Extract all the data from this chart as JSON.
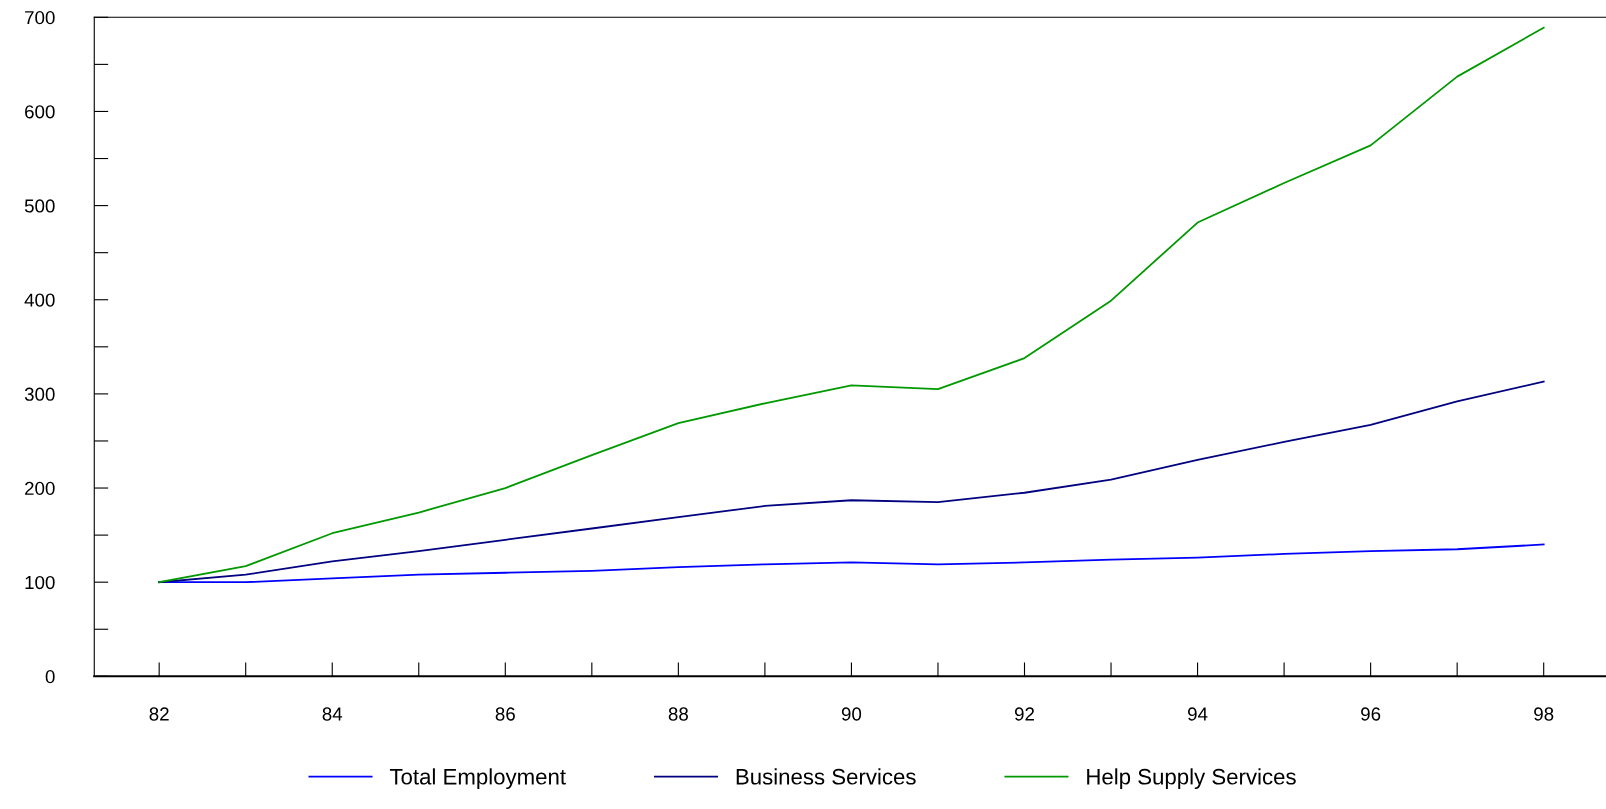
{
  "chart_data": {
    "type": "line",
    "x": [
      82,
      83,
      84,
      85,
      86,
      87,
      88,
      89,
      90,
      91,
      92,
      93,
      94,
      95,
      96,
      97,
      98
    ],
    "series": [
      {
        "name": "Total Employment",
        "color": "#0000ff",
        "values": [
          100,
          100,
          104,
          108,
          110,
          112,
          116,
          119,
          121,
          119,
          121,
          124,
          126,
          130,
          133,
          135,
          140
        ]
      },
      {
        "name": "Business Services",
        "color": "#000080",
        "values": [
          100,
          108,
          122,
          133,
          145,
          157,
          169,
          181,
          187,
          185,
          195,
          209,
          230,
          249,
          267,
          292,
          313
        ]
      },
      {
        "name": "Help Supply Services",
        "color": "#009900",
        "values": [
          100,
          117,
          152,
          174,
          200,
          235,
          269,
          290,
          309,
          305,
          338,
          399,
          482,
          524,
          564,
          637,
          689
        ]
      }
    ],
    "xlim": [
      81.25,
      98.72
    ],
    "xticks": [
      82,
      {
        "value": 83,
        "label": null
      },
      84,
      {
        "value": 85,
        "label": null
      },
      86,
      {
        "value": 87,
        "label": null
      },
      88,
      {
        "value": 89,
        "label": null
      },
      90,
      {
        "value": 91,
        "label": null
      },
      92,
      {
        "value": 93,
        "label": null
      },
      94,
      {
        "value": 95,
        "label": null
      },
      96,
      {
        "value": 97,
        "label": null
      },
      98
    ],
    "ylim": [
      0,
      700
    ],
    "yticks": [
      0,
      {
        "value": 50,
        "label": null
      },
      100,
      {
        "value": 150,
        "label": null
      },
      200,
      {
        "value": 250,
        "label": null
      },
      300,
      {
        "value": 350,
        "label": null
      },
      400,
      {
        "value": 450,
        "label": null
      },
      500,
      {
        "value": 550,
        "label": null
      },
      600,
      {
        "value": 650,
        "label": null
      },
      700
    ],
    "grid": false,
    "legend": "bottom",
    "marker": "none",
    "line_style": "solid"
  }
}
